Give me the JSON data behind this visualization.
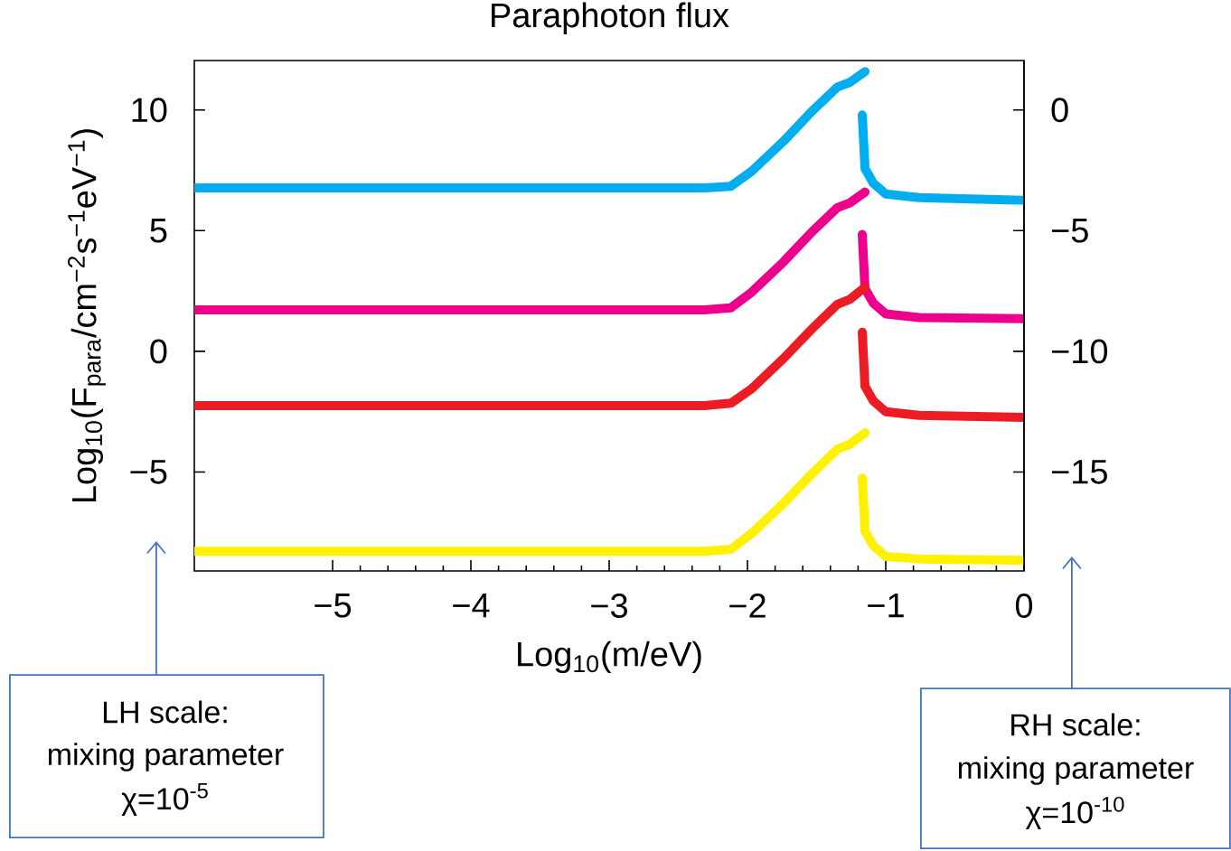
{
  "chart_data": {
    "type": "line",
    "title": "Paraphoton flux",
    "xlabel": "Log$_{10}$(m/eV)",
    "ylabel": "Log$_{10}$(F$_{para}$/cm$^{−2}$s$^{−1}$eV$^{−1}$)",
    "xlim": [
      -6,
      0
    ],
    "xticks": [
      {
        "value": -5,
        "label": "−5"
      },
      {
        "value": -4,
        "label": "−4"
      },
      {
        "value": -3,
        "label": "−3"
      },
      {
        "value": -2,
        "label": "−2"
      },
      {
        "value": -1,
        "label": "−1"
      },
      0
    ],
    "ylim": [
      -9.1,
      12.05
    ],
    "yticks": [
      {
        "value": -5,
        "label": "−5"
      },
      0,
      5,
      10
    ],
    "y2lim": [
      -19.1,
      2.05
    ],
    "y2ticks": [
      {
        "value": -15,
        "label": "−15"
      },
      {
        "value": -10,
        "label": "−10"
      },
      {
        "value": -5,
        "label": "−5"
      },
      0
    ],
    "series": [
      {
        "color": "#00aeef",
        "x": [
          -6,
          -2.31,
          -2.12,
          -1.97,
          -1.74,
          -1.53,
          -1.35,
          -1.26,
          -1.15,
          -1.16,
          -1.17,
          -1.15,
          -1.09,
          -1.0,
          -0.76,
          0
        ],
        "values": [
          6.77,
          6.77,
          6.84,
          7.46,
          8.7,
          9.97,
          10.95,
          11.14,
          11.59,
          null,
          9.79,
          7.57,
          6.97,
          6.52,
          6.37,
          6.26
        ]
      },
      {
        "color": "#ec008c",
        "x": [
          -6,
          -2.31,
          -2.12,
          -1.97,
          -1.74,
          -1.53,
          -1.35,
          -1.26,
          -1.15,
          -1.16,
          -1.17,
          -1.15,
          -1.09,
          -1.0,
          -0.76,
          0
        ],
        "values": [
          1.72,
          1.72,
          1.8,
          2.45,
          3.7,
          4.97,
          5.95,
          6.15,
          6.6,
          null,
          4.84,
          2.6,
          2.0,
          1.55,
          1.4,
          1.35
        ]
      },
      {
        "color": "#ed1c24",
        "x": [
          -6,
          -2.31,
          -2.12,
          -1.97,
          -1.74,
          -1.53,
          -1.35,
          -1.26,
          -1.15,
          -1.16,
          -1.17,
          -1.15,
          -1.09,
          -1.0,
          -0.76,
          0
        ],
        "values": [
          -2.25,
          -2.25,
          -2.15,
          -1.55,
          -0.3,
          0.95,
          1.95,
          2.15,
          2.66,
          null,
          0.79,
          -1.45,
          -2.05,
          -2.5,
          -2.65,
          -2.74
        ]
      },
      {
        "color": "#fff200",
        "x": [
          -6,
          -2.31,
          -2.12,
          -1.97,
          -1.74,
          -1.53,
          -1.35,
          -1.26,
          -1.15,
          -1.16,
          -1.17,
          -1.15,
          -1.09,
          -1.0,
          -0.76,
          0
        ],
        "values": [
          -8.29,
          -8.29,
          -8.2,
          -7.55,
          -6.3,
          -5.05,
          -4.05,
          -3.85,
          -3.37,
          null,
          -5.25,
          -7.45,
          -8.05,
          -8.5,
          -8.6,
          -8.66
        ]
      }
    ],
    "annotations": [
      "LH scale:",
      "mixing parameter",
      "χ=10$^{-5}$",
      "RH scale:",
      "mixing parameter",
      "χ=10$^{-10}$"
    ]
  }
}
